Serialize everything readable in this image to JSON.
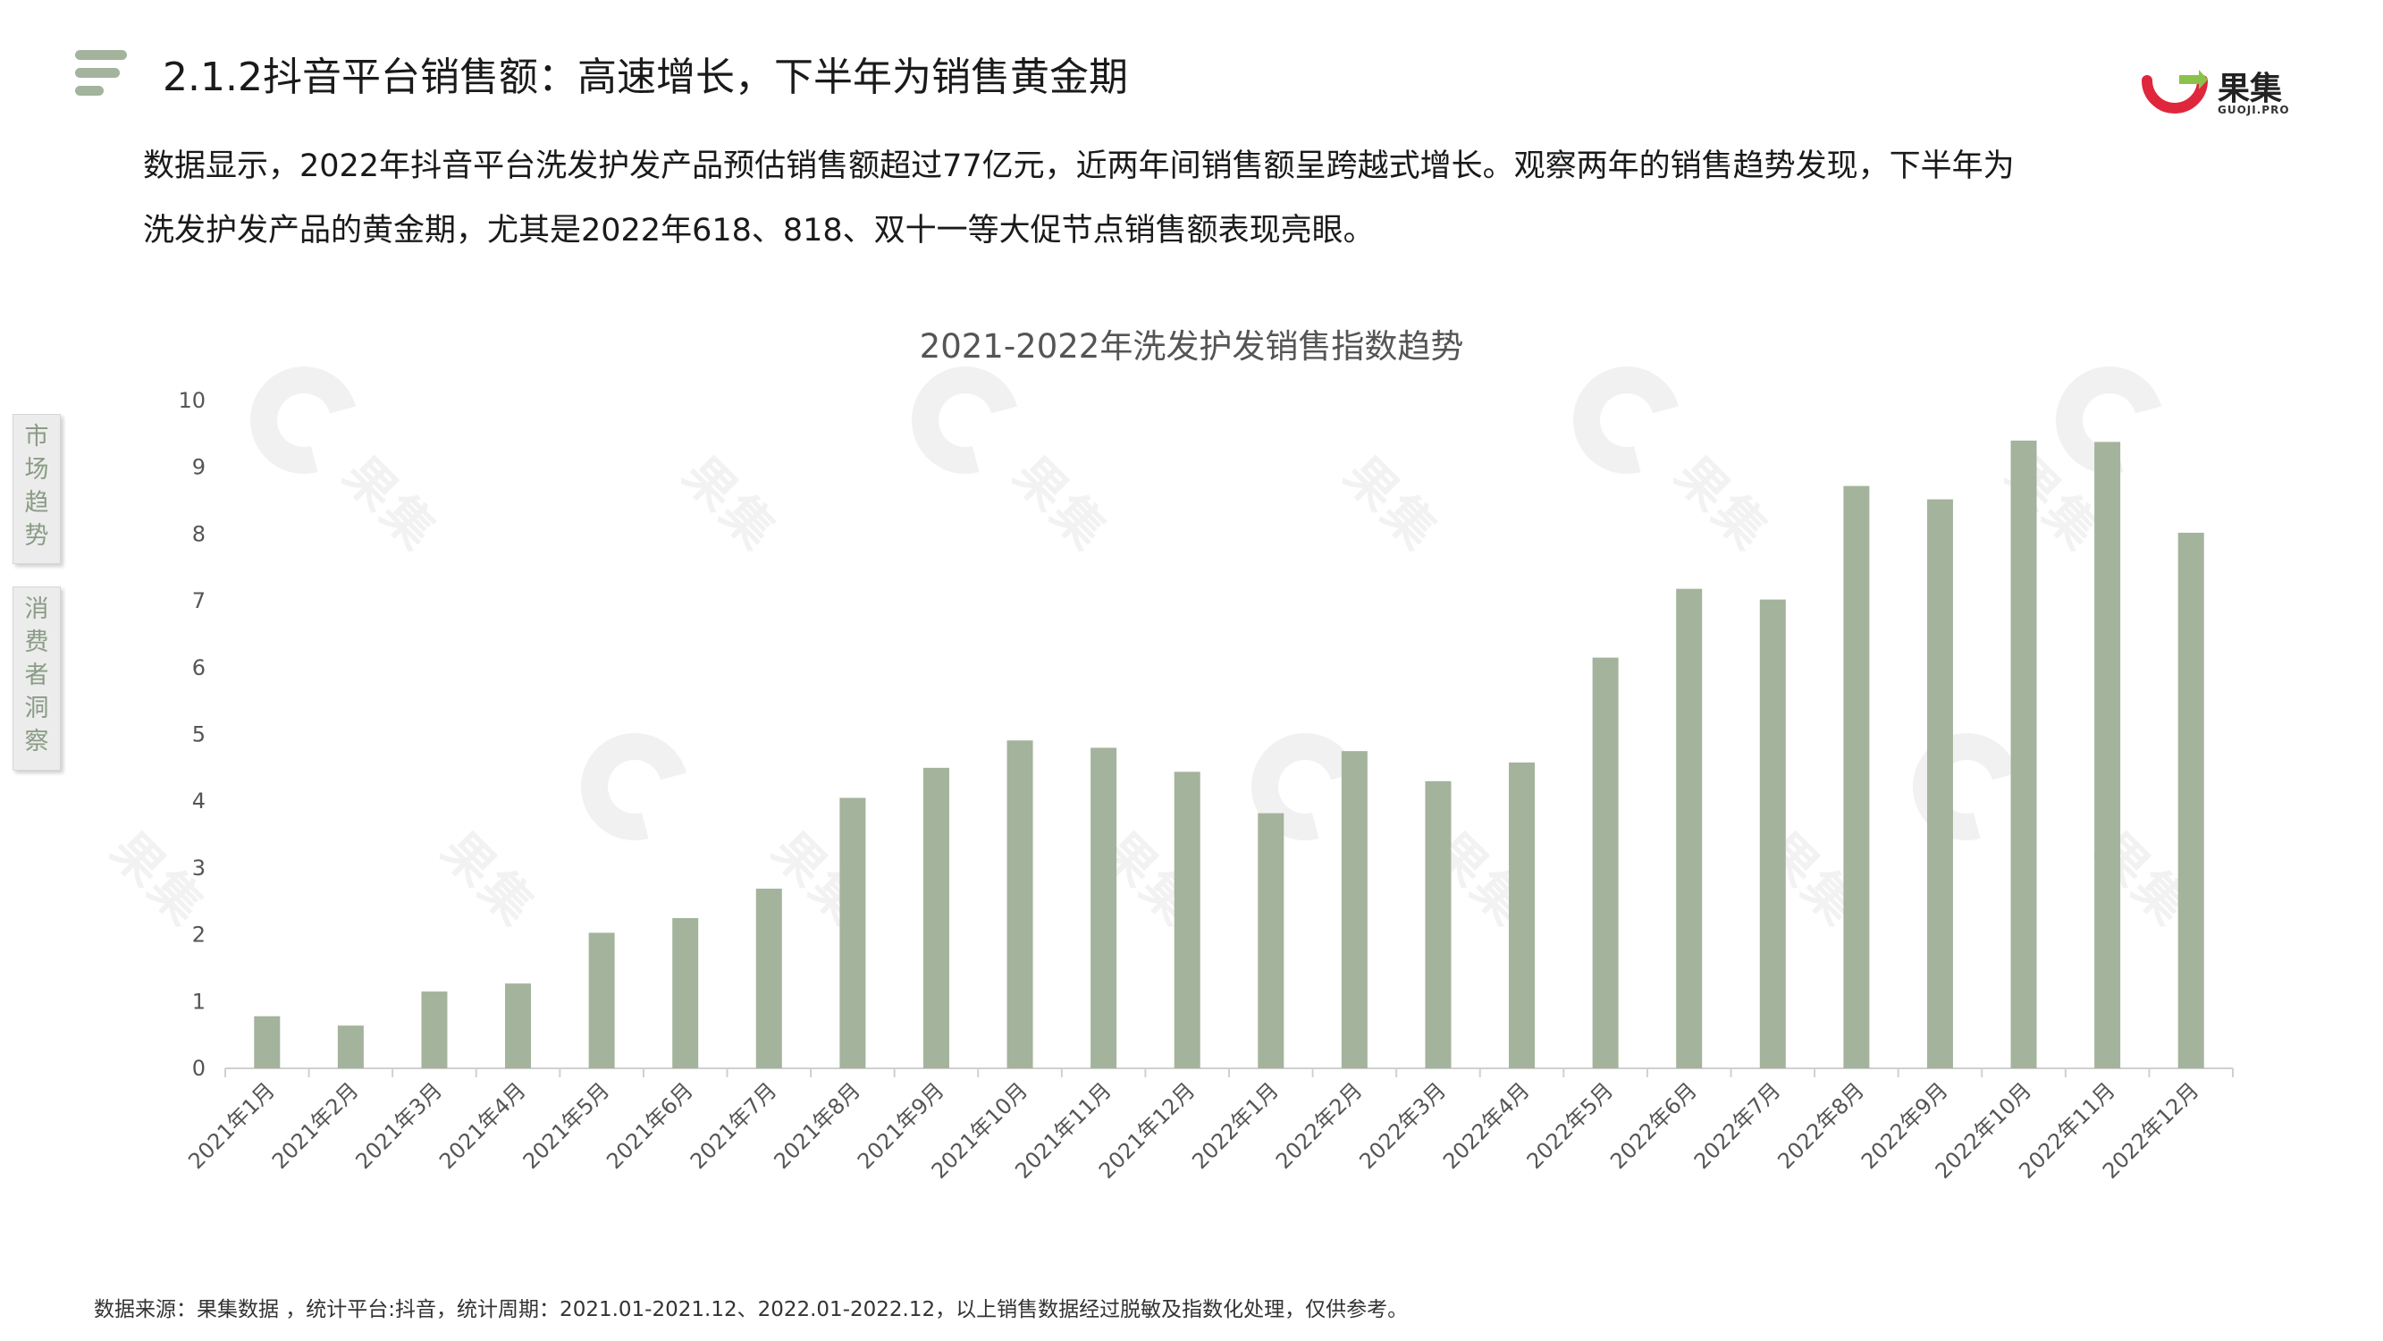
{
  "header": {
    "title": "2.1.2抖音平台销售额：高速增长，下半年为销售黄金期",
    "logo_cn": "果集",
    "logo_en": "GUOJI.PRO"
  },
  "intro": {
    "line1": "数据显示，2022年抖音平台洗发护发产品预估销售额超过77亿元，近两年间销售额呈跨越式增长。观察两年的销售趋势发现，下半年为",
    "line2": "洗发护发产品的黄金期，尤其是2022年618、818、双十一等大促节点销售额表现亮眼。"
  },
  "side_tabs": {
    "market": [
      "市",
      "场",
      "趋",
      "势"
    ],
    "consumer": [
      "消",
      "费",
      "者",
      "洞",
      "察"
    ]
  },
  "watermark": {
    "text": "果集"
  },
  "footer": {
    "source": "数据来源：果集数据 ，统计平台:抖音，统计周期：2021.01-2021.12、2022.01-2022.12，以上销售数据经过脱敏及指数化处理，仅供参考。"
  },
  "colors": {
    "bar": "#a3b39c",
    "accent_green": "#8bc34a",
    "logo_red": "#e0263c"
  },
  "chart_data": {
    "type": "bar",
    "title": "2021-2022年洗发护发销售指数趋势",
    "categories": [
      "2021年1月",
      "2021年2月",
      "2021年3月",
      "2021年4月",
      "2021年5月",
      "2021年6月",
      "2021年7月",
      "2021年8月",
      "2021年9月",
      "2021年10月",
      "2021年11月",
      "2021年12月",
      "2022年1月",
      "2022年2月",
      "2022年3月",
      "2022年4月",
      "2022年5月",
      "2022年6月",
      "2022年7月",
      "2022年8月",
      "2022年9月",
      "2022年10月",
      "2022年11月",
      "2022年12月"
    ],
    "values": [
      0.78,
      0.64,
      1.15,
      1.27,
      2.03,
      2.25,
      2.69,
      4.05,
      4.5,
      4.91,
      4.8,
      4.44,
      3.82,
      4.75,
      4.3,
      4.58,
      6.15,
      7.18,
      7.02,
      8.72,
      8.52,
      9.4,
      9.38,
      8.02
    ],
    "yticks": [
      0,
      1,
      2,
      3,
      4,
      5,
      6,
      7,
      8,
      9,
      10
    ],
    "ylim": [
      0,
      10
    ],
    "xlabel": "",
    "ylabel": "",
    "grid": false,
    "legend": "none"
  }
}
